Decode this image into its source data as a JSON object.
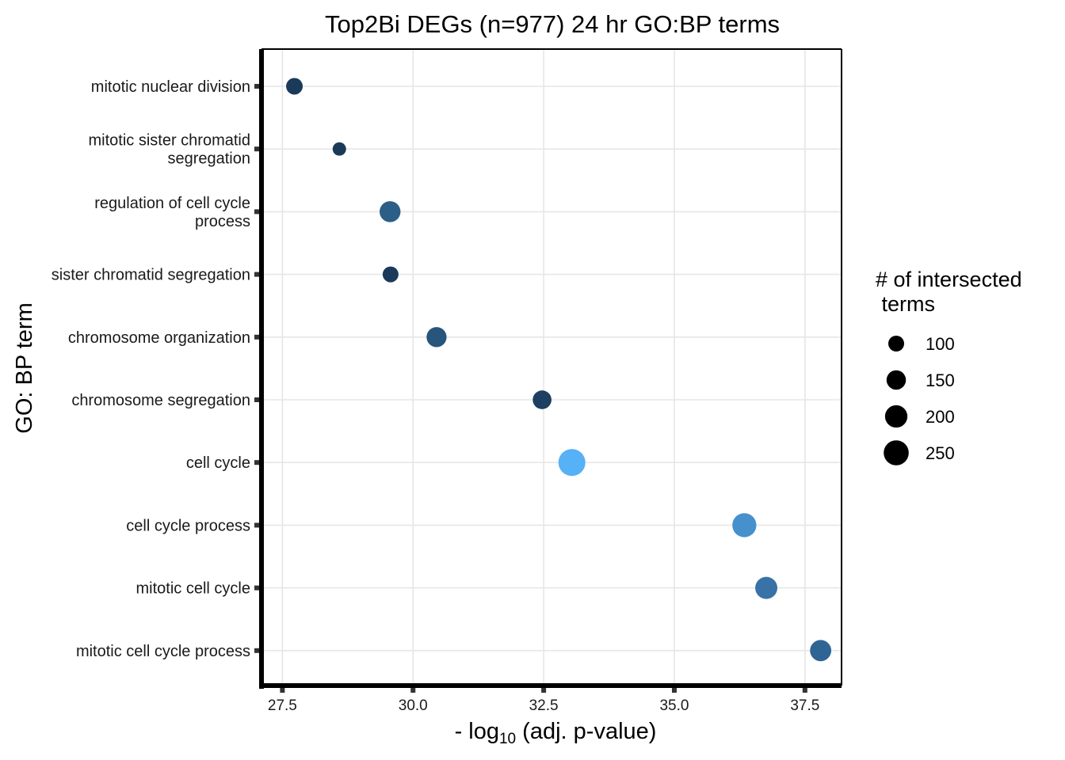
{
  "chart_data": {
    "type": "scatter",
    "title": "Top2Bi DEGs (n=977) 24 hr GO:BP terms",
    "xlabel": {
      "prefix": "- log",
      "subscript": "10",
      "suffix": " (adj. p-value)"
    },
    "ylabel": "GO: BP term",
    "xlim": [
      27.1,
      38.2
    ],
    "xticks": [
      27.5,
      30.0,
      32.5,
      35.0,
      37.5
    ],
    "xtick_labels": [
      "27.5",
      "30.0",
      "32.5",
      "35.0",
      "37.5"
    ],
    "grid": true,
    "categories": [
      [
        "mitotic nuclear division"
      ],
      [
        "mitotic sister chromatid",
        "segregation"
      ],
      [
        "regulation of cell cycle",
        "process"
      ],
      [
        "sister chromatid segregation"
      ],
      [
        "chromosome organization"
      ],
      [
        "chromosome segregation"
      ],
      [
        "cell cycle"
      ],
      [
        "cell cycle process"
      ],
      [
        "mitotic cell cycle"
      ],
      [
        "mitotic cell cycle process"
      ]
    ],
    "points": [
      {
        "term": "mitotic nuclear division",
        "x": 27.73,
        "size": 110,
        "color": "#1b3a5a"
      },
      {
        "term": "mitotic sister chromatid segregation",
        "x": 28.59,
        "size": 72,
        "color": "#1b3a5a"
      },
      {
        "term": "regulation of cell cycle process",
        "x": 29.56,
        "size": 175,
        "color": "#2c5f88"
      },
      {
        "term": "sister chromatid segregation",
        "x": 29.57,
        "size": 100,
        "color": "#1b3a5a"
      },
      {
        "term": "chromosome organization",
        "x": 30.45,
        "size": 160,
        "color": "#27557c"
      },
      {
        "term": "chromosome segregation",
        "x": 32.47,
        "size": 140,
        "color": "#1d3f61"
      },
      {
        "term": "cell cycle",
        "x": 33.04,
        "size": 290,
        "color": "#56b1f7"
      },
      {
        "term": "cell cycle process",
        "x": 36.34,
        "size": 230,
        "color": "#4690cc"
      },
      {
        "term": "mitotic cell cycle",
        "x": 36.76,
        "size": 195,
        "color": "#3872a6"
      },
      {
        "term": "mitotic cell cycle process",
        "x": 37.8,
        "size": 180,
        "color": "#2f6595"
      }
    ],
    "size_legend": {
      "title_lines": [
        "# of intersected",
        " terms"
      ],
      "breaks": [
        100,
        150,
        200,
        250
      ],
      "labels": [
        "100",
        "150",
        "200",
        "250"
      ],
      "color": "#000000"
    }
  }
}
